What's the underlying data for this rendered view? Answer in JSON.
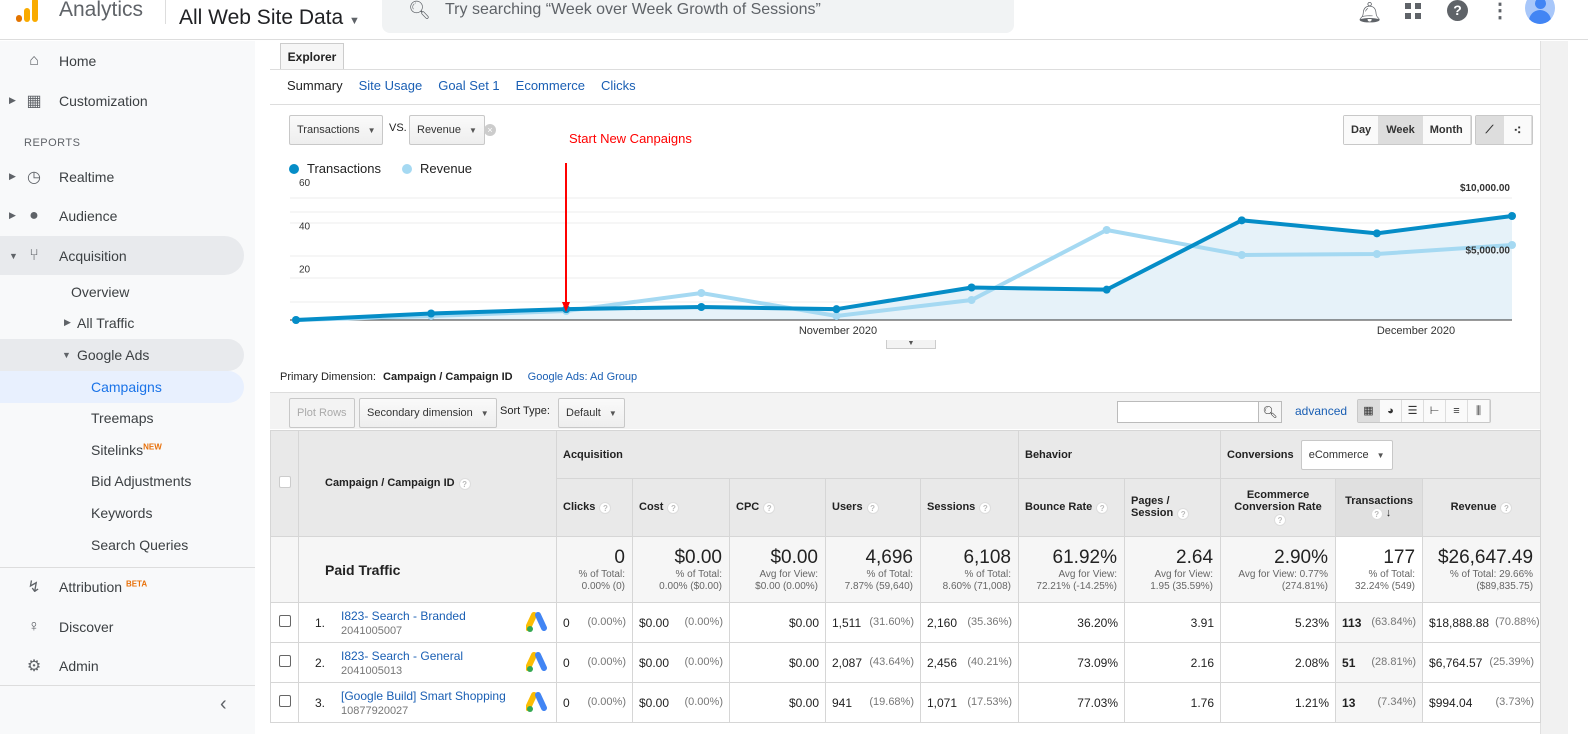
{
  "header": {
    "app_name": "Analytics",
    "property": "All Web Site Data",
    "search_placeholder": "Try searching “Week over Week Growth of Sessions”",
    "logo_colors": [
      "#f9ab00",
      "#e37400"
    ]
  },
  "sidebar": {
    "reports_heading": "REPORTS",
    "items": [
      {
        "label": "Home",
        "icon": "home-icon"
      },
      {
        "label": "Customization",
        "icon": "dashboard-icon"
      },
      {
        "label": "Realtime",
        "icon": "clock-icon"
      },
      {
        "label": "Audience",
        "icon": "person-icon"
      },
      {
        "label": "Acquisition",
        "icon": "acquisition-icon"
      },
      {
        "label": "Overview"
      },
      {
        "label": "All Traffic"
      },
      {
        "label": "Google Ads"
      },
      {
        "label": "Campaigns",
        "active": true
      },
      {
        "label": "Treemaps"
      },
      {
        "label": "Sitelinks",
        "badge": "NEW"
      },
      {
        "label": "Bid Adjustments"
      },
      {
        "label": "Keywords"
      },
      {
        "label": "Search Queries"
      },
      {
        "label": "Attribution",
        "badge": "BETA",
        "icon": "attribution-icon"
      },
      {
        "label": "Discover",
        "icon": "lightbulb-icon"
      },
      {
        "label": "Admin",
        "icon": "gear-icon"
      }
    ],
    "collapse_glyph": "‹"
  },
  "explorer": {
    "tab": "Explorer",
    "subtabs": [
      "Summary",
      "Site Usage",
      "Goal Set 1",
      "Ecommerce",
      "Clicks"
    ],
    "metric1": "Transactions",
    "vs": "VS.",
    "metric2": "Revenue",
    "granularity": [
      "Day",
      "Week",
      "Month"
    ],
    "selected_granularity": "Week",
    "annotation": "Start New Canpaigns",
    "annotation_color": "#ff0000"
  },
  "chart_data": {
    "type": "line",
    "x_labels": [
      "November 2020",
      "December 2020"
    ],
    "series": [
      {
        "name": "Transactions",
        "color": "#058dc7",
        "axis": "left",
        "values": [
          0,
          3,
          5,
          6,
          5,
          15,
          14,
          46,
          40,
          48
        ]
      },
      {
        "name": "Revenue",
        "color": "#a5d9f2",
        "axis": "right",
        "values": [
          0,
          320,
          720,
          2160,
          320,
          1600,
          7200,
          5200,
          5280,
          6000
        ]
      }
    ],
    "left_axis": {
      "ticks": [
        "20",
        "40",
        "60"
      ],
      "range": [
        0,
        60
      ]
    },
    "right_axis": {
      "ticks": [
        "$5,000.00",
        "$10,000.00"
      ],
      "range": [
        0,
        10000
      ]
    },
    "grid": true,
    "legend": "top-left"
  },
  "table_controls": {
    "primary_dimension_label": "Primary Dimension:",
    "primary_dimension": "Campaign / Campaign ID",
    "alt_dimension": "Google Ads: Ad Group",
    "plot_rows": "Plot Rows",
    "secondary_dimension": "Secondary dimension",
    "sort_type_label": "Sort Type:",
    "sort_type": "Default",
    "search_value": "",
    "advanced": "advanced"
  },
  "table": {
    "dimension_header": "Campaign / Campaign ID",
    "groups": {
      "acquisition": "Acquisition",
      "behavior": "Behavior",
      "conversions": "Conversions",
      "conversions_select": "eCommerce"
    },
    "columns": [
      "Clicks",
      "Cost",
      "CPC",
      "Users",
      "Sessions",
      "Bounce Rate",
      "Pages / Session",
      "Ecommerce Conversion Rate",
      "Transactions",
      "Revenue"
    ],
    "total": {
      "label": "Paid Traffic",
      "cells": [
        {
          "value": "0",
          "l1": "% of Total:",
          "l2": "0.00% (0)"
        },
        {
          "value": "$0.00",
          "l1": "% of Total:",
          "l2": "0.00% ($0.00)"
        },
        {
          "value": "$0.00",
          "l1": "Avg for View:",
          "l2": "$0.00 (0.00%)"
        },
        {
          "value": "4,696",
          "l1": "% of Total:",
          "l2": "7.87% (59,640)"
        },
        {
          "value": "6,108",
          "l1": "% of Total:",
          "l2": "8.60% (71,008)"
        },
        {
          "value": "61.92%",
          "l1": "Avg for View:",
          "l2": "72.21% (-14.25%)"
        },
        {
          "value": "2.64",
          "l1": "Avg for View:",
          "l2": "1.95 (35.59%)"
        },
        {
          "value": "2.90%",
          "l1": "Avg for View: 0.77%",
          "l2": "(274.81%)"
        },
        {
          "value": "177",
          "l1": "% of Total:",
          "l2": "32.24% (549)"
        },
        {
          "value": "$26,647.49",
          "l1": "% of Total: 29.66%",
          "l2": "($89,835.75)"
        }
      ]
    },
    "rows": [
      {
        "n": "1.",
        "name": "I823- Search - Branded",
        "id": "2041005007",
        "clicks": "0",
        "clicks_pct": "(0.00%)",
        "cost": "$0.00",
        "cost_pct": "(0.00%)",
        "cpc": "$0.00",
        "users": "1,511",
        "users_pct": "(31.60%)",
        "sessions": "2,160",
        "sessions_pct": "(35.36%)",
        "bounce": "36.20%",
        "pages": "3.91",
        "ecr": "5.23%",
        "tx": "113",
        "tx_pct": "(63.84%)",
        "rev": "$18,888.88",
        "rev_pct": "(70.88%)"
      },
      {
        "n": "2.",
        "name": "I823- Search - General",
        "id": "2041005013",
        "clicks": "0",
        "clicks_pct": "(0.00%)",
        "cost": "$0.00",
        "cost_pct": "(0.00%)",
        "cpc": "$0.00",
        "users": "2,087",
        "users_pct": "(43.64%)",
        "sessions": "2,456",
        "sessions_pct": "(40.21%)",
        "bounce": "73.09%",
        "pages": "2.16",
        "ecr": "2.08%",
        "tx": "51",
        "tx_pct": "(28.81%)",
        "rev": "$6,764.57",
        "rev_pct": "(25.39%)"
      },
      {
        "n": "3.",
        "name": "[Google Build] Smart Shopping",
        "id": "10877920027",
        "clicks": "0",
        "clicks_pct": "(0.00%)",
        "cost": "$0.00",
        "cost_pct": "(0.00%)",
        "cpc": "$0.00",
        "users": "941",
        "users_pct": "(19.68%)",
        "sessions": "1,071",
        "sessions_pct": "(17.53%)",
        "bounce": "77.03%",
        "pages": "1.76",
        "ecr": "1.21%",
        "tx": "13",
        "tx_pct": "(7.34%)",
        "rev": "$994.04",
        "rev_pct": "(3.73%)"
      }
    ]
  }
}
